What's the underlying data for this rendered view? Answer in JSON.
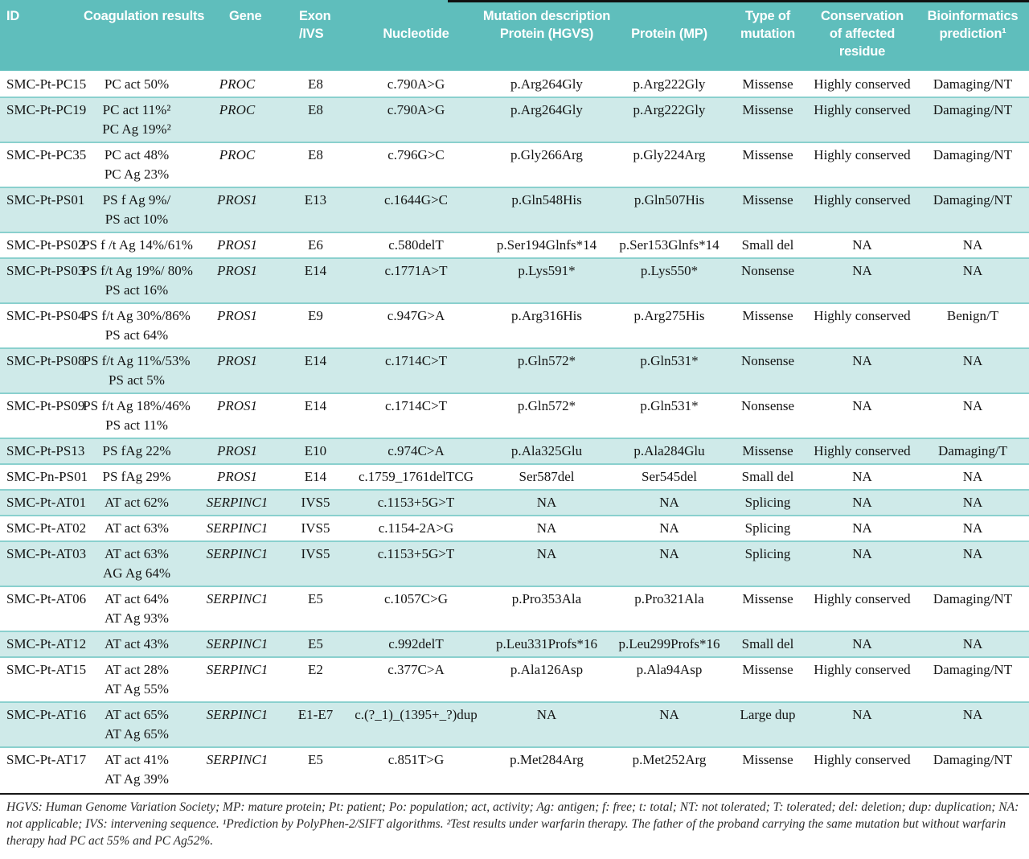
{
  "colors": {
    "header_bg": "#5fbebc",
    "row_shaded_bg": "#cfeae9",
    "row_separator": "#8ad0ce",
    "header_text": "#ffffff",
    "body_text": "#141414"
  },
  "table": {
    "header": [
      "ID",
      "Coagulation results",
      "Gene",
      "Exon\n/IVS",
      "\nNucleotide",
      "Mutation description\nProtein (HGVS)",
      "\nProtein (MP)",
      "Type of\nmutation",
      "Conservation\nof affected\nresidue",
      "Bioinformatics\nprediction¹"
    ],
    "rows": [
      {
        "id": "SMC-Pt-PC15",
        "coag": "PC act 50%",
        "gene": "PROC",
        "exon": "E8",
        "nucleotide": "c.790A>G",
        "hgvs": "p.Arg264Gly",
        "mp": "p.Arg222Gly",
        "type": "Missense",
        "conservation": "Highly conserved",
        "prediction": "Damaging/NT",
        "shaded": false
      },
      {
        "id": "SMC-Pt-PC19",
        "coag": "PC act 11%²\nPC Ag 19%²",
        "gene": "PROC",
        "exon": "E8",
        "nucleotide": "c.790A>G",
        "hgvs": "p.Arg264Gly",
        "mp": "p.Arg222Gly",
        "type": "Missense",
        "conservation": "Highly conserved",
        "prediction": "Damaging/NT",
        "shaded": true
      },
      {
        "id": "SMC-Pt-PC35",
        "coag": "PC act 48%\nPC Ag 23%",
        "gene": "PROC",
        "exon": "E8",
        "nucleotide": "c.796G>C",
        "hgvs": "p.Gly266Arg",
        "mp": "p.Gly224Arg",
        "type": "Missense",
        "conservation": "Highly conserved",
        "prediction": "Damaging/NT",
        "shaded": false
      },
      {
        "id": "SMC-Pt-PS01",
        "coag": "PS f Ag 9%/\nPS act 10%",
        "gene": "PROS1",
        "exon": "E13",
        "nucleotide": "c.1644G>C",
        "hgvs": "p.Gln548His",
        "mp": "p.Gln507His",
        "type": "Missense",
        "conservation": "Highly conserved",
        "prediction": "Damaging/NT",
        "shaded": true
      },
      {
        "id": "SMC-Pt-PS02",
        "coag": "PS f /t Ag 14%/61%",
        "gene": "PROS1",
        "exon": "E6",
        "nucleotide": "c.580delT",
        "hgvs": "p.Ser194Glnfs*14",
        "mp": "p.Ser153Glnfs*14",
        "type": "Small del",
        "conservation": "NA",
        "prediction": "NA",
        "shaded": false
      },
      {
        "id": "SMC-Pt-PS03",
        "coag": "PS f/t Ag 19%/ 80%\nPS act 16%",
        "gene": "PROS1",
        "exon": "E14",
        "nucleotide": "c.1771A>T",
        "hgvs": "p.Lys591*",
        "mp": "p.Lys550*",
        "type": "Nonsense",
        "conservation": "NA",
        "prediction": "NA",
        "shaded": true
      },
      {
        "id": "SMC-Pt-PS04",
        "coag": "PS f/t Ag 30%/86%\nPS act 64%",
        "gene": "PROS1",
        "exon": "E9",
        "nucleotide": "c.947G>A",
        "hgvs": "p.Arg316His",
        "mp": "p.Arg275His",
        "type": "Missense",
        "conservation": "Highly conserved",
        "prediction": "Benign/T",
        "shaded": false
      },
      {
        "id": "SMC-Pt-PS08",
        "coag": "PS f/t Ag 11%/53%\nPS act 5%",
        "gene": "PROS1",
        "exon": "E14",
        "nucleotide": "c.1714C>T",
        "hgvs": "p.Gln572*",
        "mp": "p.Gln531*",
        "type": "Nonsense",
        "conservation": "NA",
        "prediction": "NA",
        "shaded": true
      },
      {
        "id": "SMC-Pt-PS09",
        "coag": "PS f/t Ag 18%/46%\nPS act 11%",
        "gene": "PROS1",
        "exon": "E14",
        "nucleotide": "c.1714C>T",
        "hgvs": "p.Gln572*",
        "mp": "p.Gln531*",
        "type": "Nonsense",
        "conservation": "NA",
        "prediction": "NA",
        "shaded": false
      },
      {
        "id": "SMC-Pt-PS13",
        "coag": "PS fAg 22%",
        "gene": "PROS1",
        "exon": "E10",
        "nucleotide": "c.974C>A",
        "hgvs": "p.Ala325Glu",
        "mp": "p.Ala284Glu",
        "type": "Missense",
        "conservation": "Highly conserved",
        "prediction": "Damaging/T",
        "shaded": true
      },
      {
        "id": "SMC-Pn-PS01",
        "coag": "PS fAg 29%",
        "gene": "PROS1",
        "exon": "E14",
        "nucleotide": "c.1759_1761delTCG",
        "hgvs": "Ser587del",
        "mp": "Ser545del",
        "type": "Small del",
        "conservation": "NA",
        "prediction": "NA",
        "shaded": false
      },
      {
        "id": "SMC-Pt-AT01",
        "coag": "AT act 62%",
        "gene": "SERPINC1",
        "exon": "IVS5",
        "nucleotide": "c.1153+5G>T",
        "hgvs": "NA",
        "mp": "NA",
        "type": "Splicing",
        "conservation": "NA",
        "prediction": "NA",
        "shaded": true
      },
      {
        "id": "SMC-Pt-AT02",
        "coag": "AT act 63%",
        "gene": "SERPINC1",
        "exon": "IVS5",
        "nucleotide": "c.1154-2A>G",
        "hgvs": "NA",
        "mp": "NA",
        "type": "Splicing",
        "conservation": "NA",
        "prediction": "NA",
        "shaded": false
      },
      {
        "id": "SMC-Pt-AT03",
        "coag": "AT act 63%\nAG Ag 64%",
        "gene": "SERPINC1",
        "exon": "IVS5",
        "nucleotide": "c.1153+5G>T",
        "hgvs": "NA",
        "mp": "NA",
        "type": "Splicing",
        "conservation": "NA",
        "prediction": "NA",
        "shaded": true
      },
      {
        "id": "SMC-Pt-AT06",
        "coag": "AT act 64%\nAT Ag 93%",
        "gene": "SERPINC1",
        "exon": "E5",
        "nucleotide": "c.1057C>G",
        "hgvs": "p.Pro353Ala",
        "mp": "p.Pro321Ala",
        "type": "Missense",
        "conservation": "Highly conserved",
        "prediction": "Damaging/NT",
        "shaded": false
      },
      {
        "id": "SMC-Pt-AT12",
        "coag": "AT act 43%",
        "gene": "SERPINC1",
        "exon": "E5",
        "nucleotide": "c.992delT",
        "hgvs": "p.Leu331Profs*16",
        "mp": "p.Leu299Profs*16",
        "type": "Small del",
        "conservation": "NA",
        "prediction": "NA",
        "shaded": true
      },
      {
        "id": "SMC-Pt-AT15",
        "coag": "AT act 28%\nAT Ag 55%",
        "gene": "SERPINC1",
        "exon": "E2",
        "nucleotide": "c.377C>A",
        "hgvs": "p.Ala126Asp",
        "mp": "p.Ala94Asp",
        "type": "Missense",
        "conservation": "Highly conserved",
        "prediction": "Damaging/NT",
        "shaded": false
      },
      {
        "id": "SMC-Pt-AT16",
        "coag": "AT act 65%\nAT Ag 65%",
        "gene": "SERPINC1",
        "exon": "E1-E7",
        "nucleotide": "c.(?_1)_(1395+_?)dup",
        "hgvs": "NA",
        "mp": "NA",
        "type": "Large dup",
        "conservation": "NA",
        "prediction": "NA",
        "shaded": true
      },
      {
        "id": "SMC-Pt-AT17",
        "coag": "AT act 41%\nAT Ag 39%",
        "gene": "SERPINC1",
        "exon": "E5",
        "nucleotide": "c.851T>G",
        "hgvs": "p.Met284Arg",
        "mp": "p.Met252Arg",
        "type": "Missense",
        "conservation": "Highly conserved",
        "prediction": "Damaging/NT",
        "shaded": false
      }
    ]
  },
  "footnote": "HGVS: Human Genome Variation Society; MP: mature protein; Pt: patient; Po: population; act, activity; Ag: antigen; f: free; t: total; NT: not tolerated; T: tolerated; del: deletion; dup: duplication; NA: not applicable; IVS: intervening sequence. ¹Prediction by PolyPhen-2/SIFT algorithms. ²Test results under warfarin therapy. The father of the proband carrying the same mutation but without warfarin therapy had PC act 55% and PC Ag52%."
}
